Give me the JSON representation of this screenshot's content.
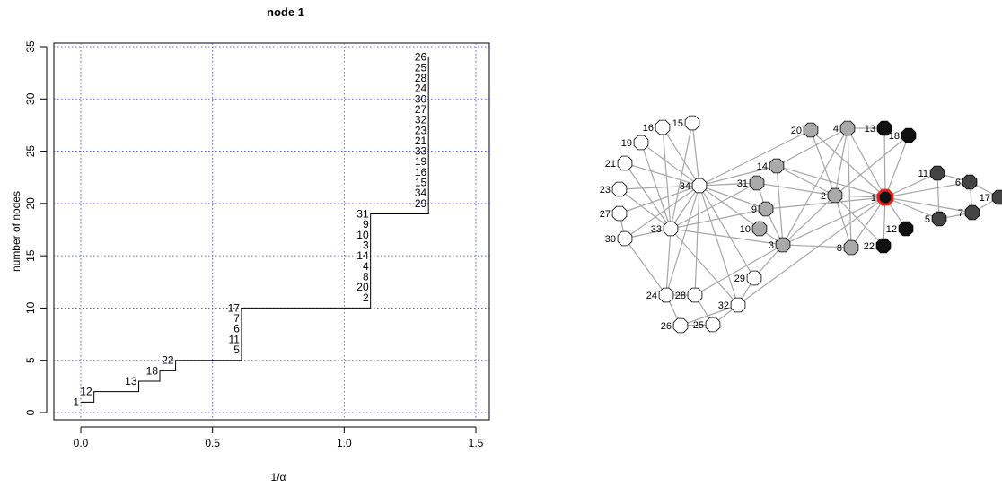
{
  "chart_data": [
    {
      "type": "line",
      "subtype": "step",
      "title": "node 1",
      "xlabel": "1/α",
      "ylabel": "number of nodes",
      "xlim": [
        0,
        1.5
      ],
      "ylim": [
        0,
        35
      ],
      "x_ticks": [
        "0.0",
        "0.5",
        "1.0",
        "1.5"
      ],
      "y_ticks": [
        "0",
        "5",
        "10",
        "15",
        "20",
        "25",
        "30",
        "35"
      ],
      "grid": true,
      "steps": [
        {
          "x": 0.0,
          "y": 1,
          "labels": [
            "1"
          ]
        },
        {
          "x": 0.05,
          "y": 2,
          "labels": [
            "12"
          ]
        },
        {
          "x": 0.22,
          "y": 3,
          "labels": [
            "13"
          ]
        },
        {
          "x": 0.3,
          "y": 4,
          "labels": [
            "18"
          ]
        },
        {
          "x": 0.36,
          "y": 5,
          "labels": [
            "22"
          ]
        },
        {
          "x": 0.61,
          "y": 10,
          "labels": [
            "5",
            "11",
            "6",
            "7",
            "17"
          ]
        },
        {
          "x": 1.1,
          "y": 19,
          "labels": [
            "2",
            "20",
            "8",
            "4",
            "14",
            "3",
            "10",
            "9",
            "31"
          ]
        },
        {
          "x": 1.32,
          "y": 34,
          "labels": [
            "29",
            "34",
            "15",
            "16",
            "19",
            "33",
            "21",
            "23",
            "32",
            "27",
            "30",
            "24",
            "28",
            "25",
            "26"
          ]
        }
      ],
      "x_end": 1.32
    },
    {
      "type": "network",
      "focus_node": "1",
      "focus_ring_color": "#e8231c",
      "edge_color": "#a6a6a6",
      "node_colors": {
        "black": "#111111",
        "dark": "#444444",
        "gray": "#aaaaaa",
        "white": "#ffffff"
      },
      "nodes": [
        {
          "id": "1",
          "shade": "black"
        },
        {
          "id": "2",
          "shade": "gray"
        },
        {
          "id": "3",
          "shade": "gray"
        },
        {
          "id": "4",
          "shade": "gray"
        },
        {
          "id": "5",
          "shade": "dark"
        },
        {
          "id": "6",
          "shade": "dark"
        },
        {
          "id": "7",
          "shade": "dark"
        },
        {
          "id": "8",
          "shade": "gray"
        },
        {
          "id": "9",
          "shade": "gray"
        },
        {
          "id": "10",
          "shade": "gray"
        },
        {
          "id": "11",
          "shade": "dark"
        },
        {
          "id": "12",
          "shade": "black"
        },
        {
          "id": "13",
          "shade": "black"
        },
        {
          "id": "14",
          "shade": "gray"
        },
        {
          "id": "15",
          "shade": "white"
        },
        {
          "id": "16",
          "shade": "white"
        },
        {
          "id": "17",
          "shade": "dark"
        },
        {
          "id": "18",
          "shade": "black"
        },
        {
          "id": "19",
          "shade": "white"
        },
        {
          "id": "20",
          "shade": "gray"
        },
        {
          "id": "21",
          "shade": "white"
        },
        {
          "id": "22",
          "shade": "black"
        },
        {
          "id": "23",
          "shade": "white"
        },
        {
          "id": "24",
          "shade": "white"
        },
        {
          "id": "25",
          "shade": "white"
        },
        {
          "id": "26",
          "shade": "white"
        },
        {
          "id": "27",
          "shade": "white"
        },
        {
          "id": "28",
          "shade": "white"
        },
        {
          "id": "29",
          "shade": "white"
        },
        {
          "id": "30",
          "shade": "white"
        },
        {
          "id": "31",
          "shade": "gray"
        },
        {
          "id": "32",
          "shade": "white"
        },
        {
          "id": "33",
          "shade": "white"
        },
        {
          "id": "34",
          "shade": "white"
        }
      ],
      "edges": [
        [
          "1",
          "2"
        ],
        [
          "1",
          "3"
        ],
        [
          "1",
          "4"
        ],
        [
          "1",
          "5"
        ],
        [
          "1",
          "6"
        ],
        [
          "1",
          "7"
        ],
        [
          "1",
          "8"
        ],
        [
          "1",
          "9"
        ],
        [
          "1",
          "11"
        ],
        [
          "1",
          "12"
        ],
        [
          "1",
          "13"
        ],
        [
          "1",
          "14"
        ],
        [
          "1",
          "18"
        ],
        [
          "1",
          "20"
        ],
        [
          "1",
          "22"
        ],
        [
          "1",
          "32"
        ],
        [
          "2",
          "3"
        ],
        [
          "2",
          "4"
        ],
        [
          "2",
          "8"
        ],
        [
          "2",
          "14"
        ],
        [
          "2",
          "18"
        ],
        [
          "2",
          "20"
        ],
        [
          "2",
          "22"
        ],
        [
          "2",
          "31"
        ],
        [
          "3",
          "4"
        ],
        [
          "3",
          "8"
        ],
        [
          "3",
          "9"
        ],
        [
          "3",
          "10"
        ],
        [
          "3",
          "14"
        ],
        [
          "3",
          "28"
        ],
        [
          "3",
          "29"
        ],
        [
          "3",
          "33"
        ],
        [
          "4",
          "8"
        ],
        [
          "4",
          "13"
        ],
        [
          "4",
          "14"
        ],
        [
          "5",
          "7"
        ],
        [
          "5",
          "11"
        ],
        [
          "6",
          "7"
        ],
        [
          "6",
          "11"
        ],
        [
          "6",
          "17"
        ],
        [
          "7",
          "17"
        ],
        [
          "9",
          "31"
        ],
        [
          "9",
          "33"
        ],
        [
          "9",
          "34"
        ],
        [
          "10",
          "34"
        ],
        [
          "14",
          "34"
        ],
        [
          "15",
          "33"
        ],
        [
          "15",
          "34"
        ],
        [
          "16",
          "33"
        ],
        [
          "16",
          "34"
        ],
        [
          "19",
          "33"
        ],
        [
          "19",
          "34"
        ],
        [
          "20",
          "34"
        ],
        [
          "21",
          "33"
        ],
        [
          "21",
          "34"
        ],
        [
          "23",
          "33"
        ],
        [
          "23",
          "34"
        ],
        [
          "24",
          "26"
        ],
        [
          "24",
          "28"
        ],
        [
          "24",
          "30"
        ],
        [
          "24",
          "33"
        ],
        [
          "24",
          "34"
        ],
        [
          "25",
          "26"
        ],
        [
          "25",
          "28"
        ],
        [
          "25",
          "32"
        ],
        [
          "26",
          "32"
        ],
        [
          "27",
          "30"
        ],
        [
          "27",
          "34"
        ],
        [
          "28",
          "34"
        ],
        [
          "29",
          "32"
        ],
        [
          "29",
          "34"
        ],
        [
          "30",
          "33"
        ],
        [
          "30",
          "34"
        ],
        [
          "31",
          "33"
        ],
        [
          "31",
          "34"
        ],
        [
          "32",
          "33"
        ],
        [
          "32",
          "34"
        ],
        [
          "33",
          "34"
        ]
      ]
    }
  ]
}
